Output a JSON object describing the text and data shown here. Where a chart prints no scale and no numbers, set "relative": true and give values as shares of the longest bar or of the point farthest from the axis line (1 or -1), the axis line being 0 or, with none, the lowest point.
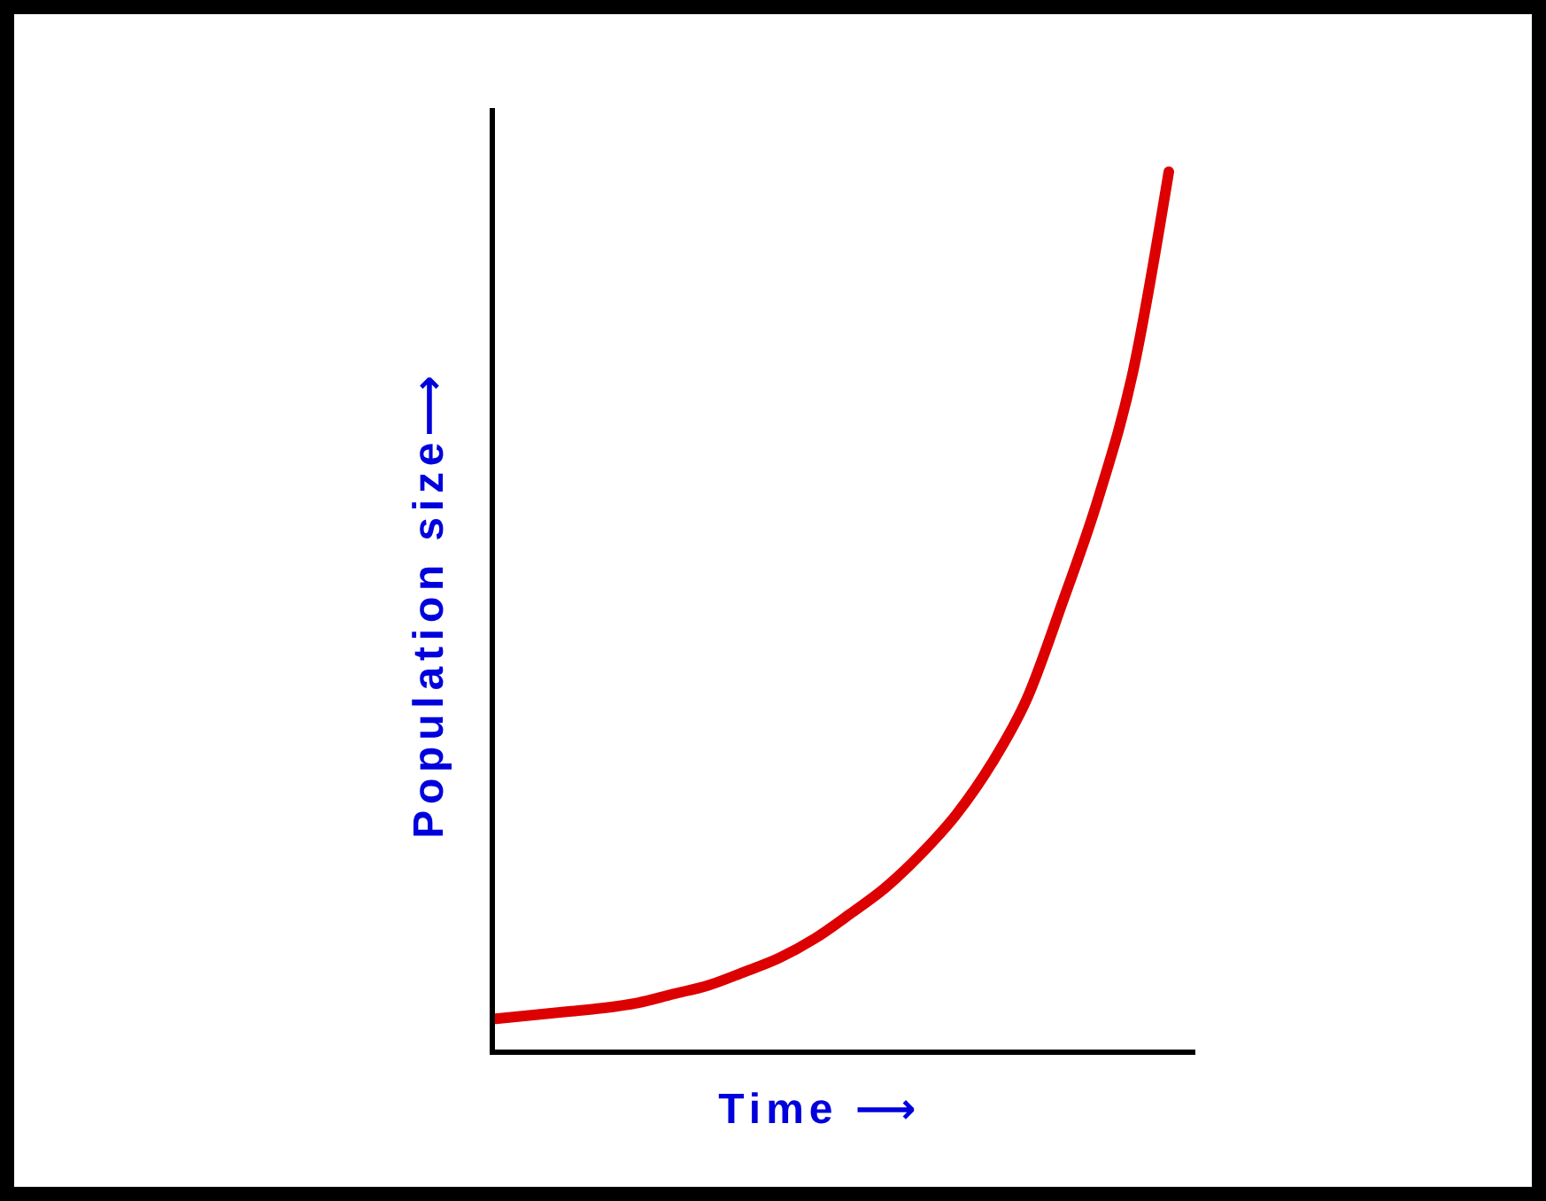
{
  "chart_data": {
    "type": "line",
    "relative": true,
    "xlabel": "Time ⟶",
    "ylabel": "Population size⟶",
    "categories": [
      null,
      null,
      null,
      null,
      null,
      null,
      null,
      null,
      null,
      null,
      null,
      null,
      null,
      null,
      null,
      null,
      null,
      null,
      null,
      null
    ],
    "series": [
      {
        "color": "#dd0000",
        "values": [
          0.038,
          0.042,
          0.046,
          0.05,
          0.056,
          0.066,
          0.076,
          0.091,
          0.107,
          0.129,
          0.157,
          0.187,
          0.225,
          0.27,
          0.328,
          0.402,
          0.511,
          0.628,
          0.775,
          1
        ]
      }
    ]
  }
}
